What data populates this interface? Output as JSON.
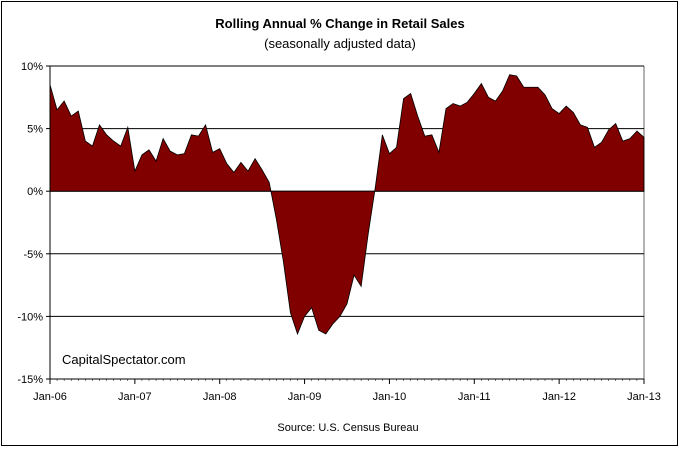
{
  "chart_data": {
    "type": "area",
    "title": "Rolling Annual %  Change in Retail Sales",
    "subtitle": "(seasonally adjusted data)",
    "ylim": [
      -15,
      10
    ],
    "yticks": [
      10,
      5,
      0,
      -5,
      -10,
      -15
    ],
    "ytick_labels": [
      "10%",
      "5%",
      "0%",
      "-5%",
      "-10%",
      "-15%"
    ],
    "xlim": [
      "2006-01",
      "2013-01"
    ],
    "xtick_labels": [
      "Jan-06",
      "Jan-07",
      "Jan-08",
      "Jan-09",
      "Jan-10",
      "Jan-11",
      "Jan-12",
      "Jan-13"
    ],
    "grid": "horizontal at major y ticks",
    "legend": "none",
    "annotation": "CapitalSpectator.com",
    "source": "Source: U.S. Census Bureau",
    "fill_color": "#800000",
    "x": [
      "2006-01",
      "2006-02",
      "2006-03",
      "2006-04",
      "2006-05",
      "2006-06",
      "2006-07",
      "2006-08",
      "2006-09",
      "2006-10",
      "2006-11",
      "2006-12",
      "2007-01",
      "2007-02",
      "2007-03",
      "2007-04",
      "2007-05",
      "2007-06",
      "2007-07",
      "2007-08",
      "2007-09",
      "2007-10",
      "2007-11",
      "2007-12",
      "2008-01",
      "2008-02",
      "2008-03",
      "2008-04",
      "2008-05",
      "2008-06",
      "2008-07",
      "2008-08",
      "2008-09",
      "2008-10",
      "2008-11",
      "2008-12",
      "2009-01",
      "2009-02",
      "2009-03",
      "2009-04",
      "2009-05",
      "2009-06",
      "2009-07",
      "2009-08",
      "2009-09",
      "2009-10",
      "2009-11",
      "2009-12",
      "2010-01",
      "2010-02",
      "2010-03",
      "2010-04",
      "2010-05",
      "2010-06",
      "2010-07",
      "2010-08",
      "2010-09",
      "2010-10",
      "2010-11",
      "2010-12",
      "2011-01",
      "2011-02",
      "2011-03",
      "2011-04",
      "2011-05",
      "2011-06",
      "2011-07",
      "2011-08",
      "2011-09",
      "2011-10",
      "2011-11",
      "2011-12",
      "2012-01",
      "2012-02",
      "2012-03",
      "2012-04",
      "2012-05",
      "2012-06",
      "2012-07",
      "2012-08",
      "2012-09",
      "2012-10",
      "2012-11",
      "2012-12",
      "2013-01"
    ],
    "values": [
      8.5,
      6.5,
      7.2,
      6.0,
      6.4,
      4.0,
      3.6,
      5.3,
      4.5,
      4.0,
      3.6,
      5.1,
      1.6,
      2.9,
      3.3,
      2.4,
      4.2,
      3.2,
      2.9,
      3.0,
      4.5,
      4.4,
      5.3,
      3.1,
      3.4,
      2.2,
      1.5,
      2.3,
      1.6,
      2.6,
      1.7,
      0.7,
      -2.2,
      -5.6,
      -9.7,
      -11.4,
      -10.0,
      -9.3,
      -11.1,
      -11.4,
      -10.6,
      -10.0,
      -9.0,
      -6.7,
      -7.6,
      -3.4,
      0.3,
      4.5,
      3.0,
      3.5,
      7.4,
      7.8,
      6.0,
      4.4,
      4.5,
      3.1,
      6.6,
      7.0,
      6.8,
      7.1,
      7.8,
      8.6,
      7.5,
      7.2,
      8.0,
      9.3,
      9.2,
      8.3,
      8.3,
      8.3,
      7.7,
      6.6,
      6.2,
      6.8,
      6.3,
      5.3,
      5.1,
      3.5,
      3.9,
      4.9,
      5.4,
      4.0,
      4.2,
      4.8,
      4.3
    ]
  }
}
